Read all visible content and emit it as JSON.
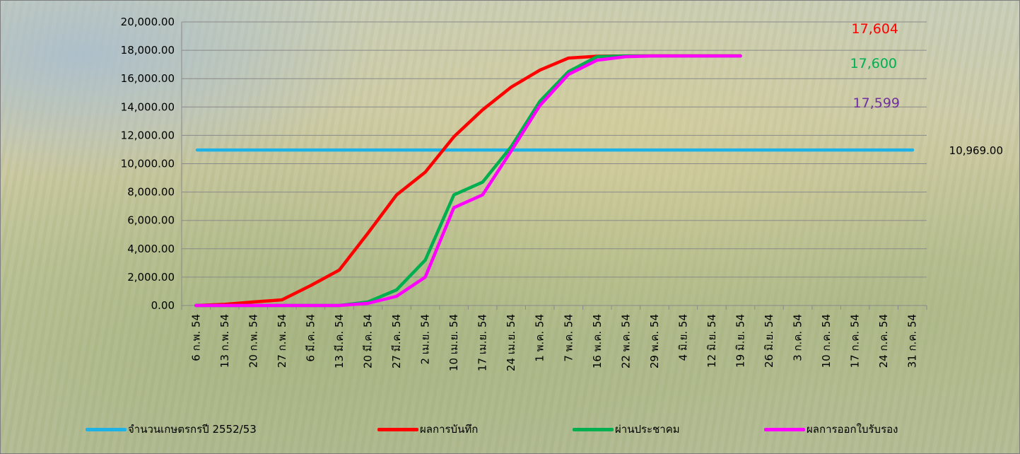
{
  "chart_data": {
    "type": "line",
    "title": "",
    "xlabel": "",
    "ylabel": "",
    "ylim": [
      0,
      20000
    ],
    "y_ticks": [
      "0.00",
      "2,000.00",
      "4,000.00",
      "6,000.00",
      "8,000.00",
      "10,000.00",
      "12,000.00",
      "14,000.00",
      "16,000.00",
      "18,000.00",
      "20,000.00"
    ],
    "grid": "horizontal",
    "legend_position": "bottom",
    "categories": [
      "6 ก.พ. 54",
      "13 ก.พ. 54",
      "20 ก.พ. 54",
      "27 ก.พ. 54",
      "6 มี.ค. 54",
      "13 มี.ค. 54",
      "20 มี.ค. 54",
      "27 มี.ค. 54",
      "2 เม.ย. 54",
      "10 เม.ย. 54",
      "17 เม.ย. 54",
      "24 เม.ย. 54",
      "1 พ.ค. 54",
      "7 พ.ค. 54",
      "16 พ.ค. 54",
      "22 พ.ค. 54",
      "29 พ.ค. 54",
      "4 มิ.ย. 54",
      "12 มิ.ย. 54",
      "19 มิ.ย. 54",
      "26 มิ.ย. 54",
      "3 ก.ค. 54",
      "10 ก.ค. 54",
      "17 ก.ค. 54",
      "24 ก.ค. 54",
      "31 ก.ค. 54"
    ],
    "series": [
      {
        "name": "จำนวนเกษตรกรปี  2552/53",
        "color": "#1fb2e6",
        "values": [
          10969,
          10969,
          10969,
          10969,
          10969,
          10969,
          10969,
          10969,
          10969,
          10969,
          10969,
          10969,
          10969,
          10969,
          10969,
          10969,
          10969,
          10969,
          10969,
          10969,
          10969,
          10969,
          10969,
          10969,
          10969,
          10969
        ]
      },
      {
        "name": "ผลการบันทึก",
        "color": "#ff0000",
        "values": [
          0,
          80,
          250,
          400,
          1400,
          2500,
          5100,
          7800,
          9400,
          11900,
          13800,
          15400,
          16600,
          17450,
          17580,
          17600,
          17604,
          17604,
          17604,
          17604,
          null,
          null,
          null,
          null,
          null,
          null
        ]
      },
      {
        "name": "ผ่านประชาคม",
        "color": "#00b050",
        "values": [
          0,
          0,
          0,
          0,
          0,
          0,
          250,
          1100,
          3200,
          7800,
          8700,
          11200,
          14400,
          16500,
          17550,
          17600,
          17600,
          17600,
          17600,
          17600,
          null,
          null,
          null,
          null,
          null,
          null
        ]
      },
      {
        "name": "ผลการออกใบรับรอง",
        "color": "#ff00ff",
        "values": [
          0,
          0,
          0,
          0,
          0,
          0,
          150,
          650,
          2000,
          6900,
          7800,
          10900,
          14100,
          16300,
          17300,
          17550,
          17599,
          17599,
          17599,
          17599,
          null,
          null,
          null,
          null,
          null,
          null
        ]
      }
    ],
    "annotations": [
      {
        "text": "17,604",
        "color": "#ff0000"
      },
      {
        "text": "17,600",
        "color": "#00b050"
      },
      {
        "text": "17,599",
        "color": "#7030a0"
      },
      {
        "text": "10,969.00",
        "color": "#000000"
      }
    ]
  }
}
